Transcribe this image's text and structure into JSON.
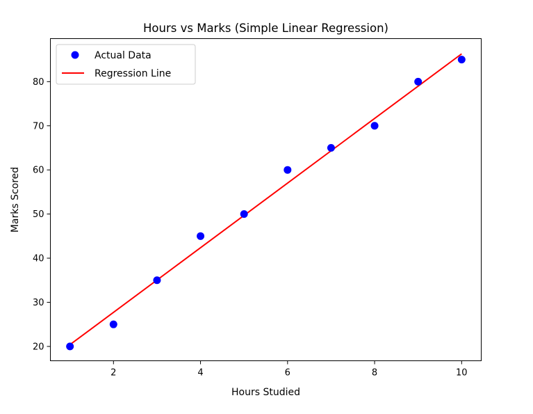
{
  "chart_data": {
    "type": "scatter",
    "title": "Hours vs Marks (Simple Linear Regression)",
    "xlabel": "Hours Studied",
    "ylabel": "Marks Scored",
    "xlim": [
      0.55,
      10.45
    ],
    "ylim": [
      16.75,
      89.75
    ],
    "xticks": [
      2,
      4,
      6,
      8,
      10
    ],
    "yticks": [
      20,
      30,
      40,
      50,
      60,
      70,
      80
    ],
    "grid": false,
    "legend_position": "upper-left",
    "series": [
      {
        "name": "Actual Data",
        "kind": "scatter",
        "color": "#0000ff",
        "x": [
          1,
          2,
          3,
          4,
          5,
          6,
          7,
          8,
          9,
          10
        ],
        "y": [
          20,
          25,
          35,
          45,
          50,
          60,
          65,
          70,
          80,
          85
        ]
      },
      {
        "name": "Regression Line",
        "kind": "line",
        "color": "#ff0000",
        "x": [
          1,
          10
        ],
        "y": [
          20.4,
          86.3
        ]
      }
    ]
  }
}
